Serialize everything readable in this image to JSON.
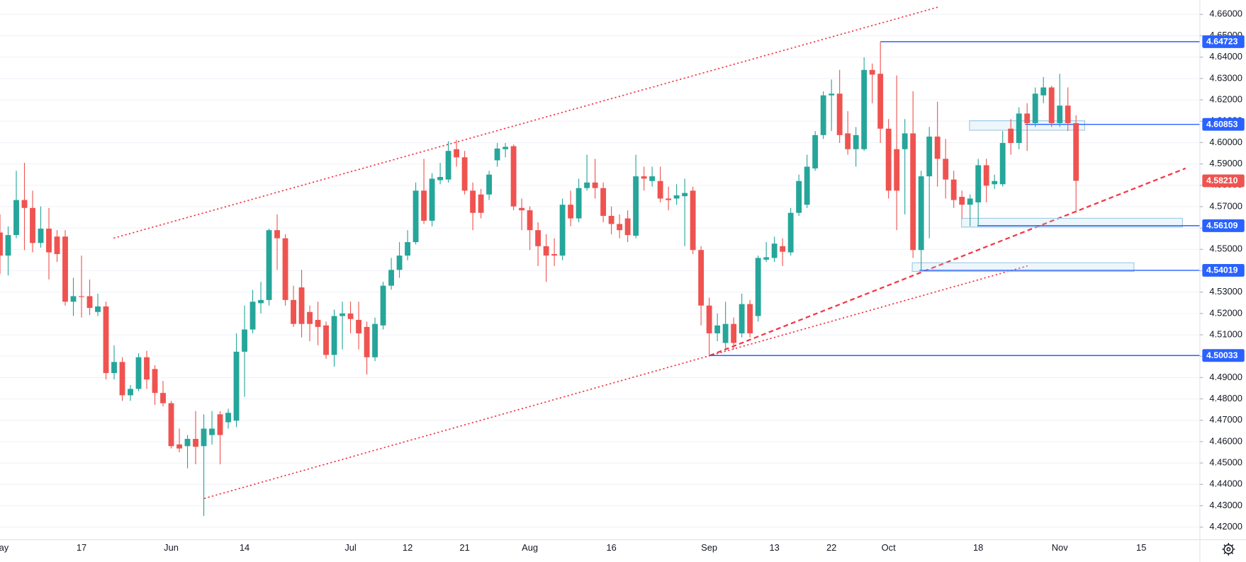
{
  "chart_data": {
    "type": "candlestick",
    "up_color": "#26a69a",
    "down_color": "#ef5350",
    "grid": true,
    "xlim": [
      0,
      147
    ],
    "ylim": [
      4.4141,
      4.6667
    ],
    "yticks": [
      {
        "value": 4.42,
        "label": "4.42000"
      },
      {
        "value": 4.43,
        "label": "4.43000"
      },
      {
        "value": 4.44,
        "label": "4.44000"
      },
      {
        "value": 4.45,
        "label": "4.45000"
      },
      {
        "value": 4.46,
        "label": "4.46000"
      },
      {
        "value": 4.47,
        "label": "4.47000"
      },
      {
        "value": 4.48,
        "label": "4.48000"
      },
      {
        "value": 4.49,
        "label": "4.49000"
      },
      {
        "value": 4.5,
        "label": "4.50000"
      },
      {
        "value": 4.51,
        "label": "4.51000"
      },
      {
        "value": 4.52,
        "label": "4.52000"
      },
      {
        "value": 4.53,
        "label": "4.53000"
      },
      {
        "value": 4.54,
        "label": "4.54000"
      },
      {
        "value": 4.55,
        "label": "4.55000"
      },
      {
        "value": 4.56,
        "label": "4.56000"
      },
      {
        "value": 4.57,
        "label": "4.57000"
      },
      {
        "value": 4.58,
        "label": "4.58000"
      },
      {
        "value": 4.59,
        "label": "4.59000"
      },
      {
        "value": 4.6,
        "label": "4.60000"
      },
      {
        "value": 4.61,
        "label": "4.61000"
      },
      {
        "value": 4.62,
        "label": "4.62000"
      },
      {
        "value": 4.63,
        "label": "4.63000"
      },
      {
        "value": 4.64,
        "label": "4.64000"
      },
      {
        "value": 4.65,
        "label": "4.65000"
      },
      {
        "value": 4.66,
        "label": "4.66000"
      }
    ],
    "categories": [
      "May",
      null,
      null,
      null,
      null,
      null,
      null,
      null,
      null,
      null,
      "17",
      null,
      null,
      null,
      null,
      null,
      null,
      null,
      null,
      null,
      null,
      "Jun",
      null,
      null,
      null,
      null,
      null,
      null,
      null,
      null,
      "14",
      null,
      null,
      null,
      null,
      null,
      null,
      null,
      null,
      null,
      null,
      null,
      null,
      "Jul",
      null,
      null,
      null,
      null,
      null,
      null,
      "12",
      null,
      null,
      null,
      null,
      null,
      null,
      "21",
      null,
      null,
      null,
      null,
      null,
      null,
      null,
      "Aug",
      null,
      null,
      null,
      null,
      null,
      null,
      null,
      null,
      null,
      "16",
      null,
      null,
      null,
      null,
      null,
      null,
      null,
      null,
      null,
      null,
      null,
      "Sep",
      null,
      null,
      null,
      null,
      null,
      null,
      null,
      "13",
      null,
      null,
      null,
      null,
      null,
      null,
      "22",
      null,
      null,
      null,
      null,
      null,
      null,
      "Oct",
      null,
      null,
      null,
      null,
      null,
      null,
      null,
      null,
      null,
      null,
      "18",
      null,
      null,
      null,
      null,
      null,
      null,
      null,
      null,
      null,
      "Nov",
      null,
      null,
      null,
      null,
      null,
      null,
      null,
      null,
      null,
      "15"
    ],
    "open": [
      4.5579,
      4.5471,
      4.5567,
      4.5731,
      4.5694,
      4.553,
      4.5597,
      4.556,
      4.556,
      4.5255,
      4.5281,
      4.5281,
      4.5207,
      4.5233,
      4.4921,
      4.4973,
      4.4817,
      4.4847,
      4.4995,
      4.494,
      4.4828,
      4.478,
      4.4587,
      4.4579,
      4.4613,
      4.4579,
      4.4631,
      4.4728,
      4.4691,
      4.4698,
      4.5021,
      4.5125,
      4.5248,
      4.5263,
      4.559,
      4.5552,
      4.5263,
      4.5322,
      4.5207,
      4.517,
      4.5144,
      4.5006,
      4.5188,
      4.52,
      4.517,
      4.5137,
      4.4995,
      4.5144,
      4.533,
      4.5404,
      4.5471,
      4.5534,
      4.5775,
      4.5634,
      4.5824,
      4.5827,
      4.5969,
      4.5931,
      4.5775,
      4.5757,
      4.5757,
      4.5917,
      4.5969,
      4.5983,
      4.5694,
      4.5683,
      4.559,
      4.5515,
      4.5478,
      4.5471,
      4.5709,
      4.5645,
      4.5787,
      4.5813,
      4.5787,
      4.5657,
      4.5619,
      4.5645,
      4.5564,
      4.5842,
      4.582,
      4.582,
      4.5738,
      4.5738,
      4.5749,
      4.5775,
      4.5497,
      4.5237,
      4.5107,
      4.5062,
      4.5151,
      4.5107,
      4.5244,
      4.5188,
      4.5452,
      4.546,
      4.5515,
      4.5486,
      4.5671,
      4.5709,
      4.5879,
      4.6035,
      4.6221,
      4.6229,
      4.6043,
      4.5969,
      4.5969,
      4.634,
      4.6322,
      4.6065,
      4.5969,
      4.5969,
      4.6043,
      4.5497,
      4.5842,
      4.6028,
      4.5924,
      4.5827,
      4.5746,
      4.5709,
      4.572,
      4.5894,
      4.5805,
      4.5805,
      4.6065,
      4.5998,
      4.6136,
      4.6091,
      4.6221,
      4.6258,
      4.6091,
      4.6173,
      4.6091,
      null,
      null,
      null,
      null,
      null,
      null,
      null,
      null
    ],
    "high": [
      4.5664,
      4.5608,
      4.5868,
      4.5905,
      4.5775,
      4.5701,
      4.5694,
      4.559,
      4.559,
      4.5367,
      4.5471,
      4.5359,
      4.5293,
      4.5255,
      4.5051,
      4.4995,
      4.4865,
      4.5014,
      4.5025,
      4.4958,
      4.4884,
      4.4791,
      4.4661,
      4.4631,
      4.4743,
      4.4728,
      4.4743,
      4.4743,
      4.4754,
      4.5107,
      4.5237,
      4.5311,
      4.5348,
      4.5597,
      4.5664,
      4.5571,
      4.533,
      4.5404,
      4.5237,
      4.5255,
      4.5162,
      4.5218,
      4.5255,
      4.5255,
      4.5255,
      4.5162,
      4.5181,
      4.5348,
      4.546,
      4.5534,
      4.559,
      4.5813,
      4.5924,
      4.5857,
      4.5905,
      4.6006,
      4.6013,
      4.5961,
      4.5813,
      4.5783,
      4.5868,
      4.5998,
      4.5998,
      4.5991,
      4.5738,
      4.5701,
      4.5627,
      4.5571,
      4.5552,
      4.5738,
      4.5775,
      4.5831,
      4.5943,
      4.5924,
      4.5813,
      4.5701,
      4.5664,
      4.5683,
      4.5943,
      4.5887,
      4.5887,
      4.5887,
      4.5794,
      4.5805,
      4.5831,
      4.5794,
      4.5515,
      4.5274,
      4.52,
      4.5255,
      4.5181,
      4.5293,
      4.5263,
      4.5471,
      4.5534,
      4.556,
      4.5552,
      4.5694,
      4.585,
      4.5943,
      4.6054,
      4.624,
      4.6295,
      4.634,
      4.6147,
      4.6073,
      4.6399,
      4.637,
      4.64723,
      4.611,
      4.6314,
      4.611,
      4.624,
      4.5868,
      4.6073,
      4.6191,
      4.6017,
      4.5868,
      4.5775,
      4.5757,
      4.5924,
      4.5924,
      4.585,
      4.6054,
      4.611,
      4.6165,
      4.6184,
      4.6258,
      4.6307,
      4.6266,
      4.6322,
      4.6258,
      4.6128,
      null,
      null,
      null,
      null,
      null,
      null,
      null,
      null
    ],
    "low": [
      4.5385,
      4.5378,
      4.5552,
      4.5497,
      4.5486,
      4.5508,
      4.5359,
      4.5441,
      4.5237,
      4.5188,
      4.5181,
      4.5192,
      4.5188,
      4.4891,
      4.4891,
      4.4791,
      4.4791,
      4.4836,
      4.4847,
      4.4772,
      4.4765,
      4.4568,
      4.455,
      4.4475,
      4.4494,
      4.4252,
      4.4587,
      4.4494,
      4.4661,
      4.4668,
      4.481,
      4.5107,
      4.52,
      4.5237,
      4.5404,
      4.5237,
      4.5137,
      4.5088,
      4.507,
      4.5051,
      4.4988,
      4.4951,
      4.5032,
      4.5107,
      4.5032,
      4.4914,
      4.4977,
      4.5125,
      4.5311,
      4.5367,
      4.5449,
      4.5523,
      4.5619,
      4.5608,
      4.5805,
      4.5813,
      4.5887,
      4.5757,
      4.559,
      4.5645,
      4.5731,
      4.5887,
      4.5931,
      4.5683,
      4.559,
      4.5497,
      4.5422,
      4.5348,
      4.5422,
      4.5449,
      4.5608,
      4.5627,
      4.5775,
      4.5738,
      4.5627,
      4.5571,
      4.5552,
      4.5534,
      4.5552,
      4.5775,
      4.5794,
      4.572,
      4.5683,
      4.5709,
      4.5515,
      4.5478,
      4.5144,
      4.50033,
      4.507,
      4.5032,
      4.5032,
      4.5088,
      4.5088,
      4.5162,
      4.5441,
      4.5441,
      4.5422,
      4.5471,
      4.5657,
      4.5694,
      4.5868,
      4.6017,
      4.6054,
      4.5998,
      4.5943,
      4.5887,
      4.5961,
      4.6184,
      4.5998,
      4.5738,
      4.559,
      4.5664,
      4.546,
      4.54019,
      4.5552,
      4.5794,
      4.5738,
      4.5694,
      4.5645,
      4.5608,
      4.56109,
      4.572,
      4.5783,
      4.5794,
      4.5943,
      4.5969,
      4.5961,
      4.6073,
      4.6184,
      4.6073,
      4.6073,
      4.6054,
      4.5671,
      null,
      null,
      null,
      null,
      null,
      null,
      null,
      null
    ],
    "close": [
      4.5471,
      4.5567,
      4.5731,
      4.5694,
      4.553,
      4.5597,
      4.5486,
      4.5478,
      4.5255,
      4.5281,
      4.5278,
      4.5226,
      4.5233,
      4.4921,
      4.4973,
      4.4817,
      4.4847,
      4.4995,
      4.4891,
      4.4828,
      4.478,
      4.4579,
      4.4568,
      4.4613,
      4.4576,
      4.4661,
      4.4661,
      4.4631,
      4.4735,
      4.5021,
      4.5125,
      4.5255,
      4.5263,
      4.559,
      4.5552,
      4.5263,
      4.5151,
      4.5151,
      4.5151,
      4.5137,
      4.5006,
      4.5188,
      4.52,
      4.5174,
      4.5107,
      4.4995,
      4.5151,
      4.533,
      4.5404,
      4.5471,
      4.5534,
      4.5775,
      4.5634,
      4.5831,
      4.5839,
      4.5961,
      4.5931,
      4.5775,
      4.5671,
      4.5671,
      4.585,
      4.5972,
      4.598,
      4.5701,
      4.5683,
      4.559,
      4.5515,
      4.5471,
      4.5471,
      4.5709,
      4.5645,
      4.5787,
      4.5813,
      4.5787,
      4.5657,
      4.5619,
      4.559,
      4.5567,
      4.5842,
      4.5831,
      4.5842,
      4.5738,
      4.5731,
      4.5753,
      4.5764,
      4.5497,
      4.5237,
      4.5107,
      4.5144,
      4.5151,
      4.5062,
      4.5244,
      4.5107,
      4.546,
      4.5463,
      4.5527,
      4.5489,
      4.5671,
      4.582,
      4.5887,
      4.6035,
      4.6221,
      4.6229,
      4.6035,
      4.5969,
      4.6035,
      4.634,
      4.6318,
      4.6065,
      4.5775,
      4.5775,
      4.6043,
      4.5497,
      4.5842,
      4.6028,
      4.5924,
      4.5827,
      4.5731,
      4.5709,
      4.5738,
      4.5894,
      4.5798,
      4.582,
      4.5998,
      4.5998,
      4.6136,
      4.6091,
      4.6229,
      4.6258,
      4.6091,
      4.6173,
      4.6091,
      4.5821,
      null,
      null,
      null,
      null,
      null,
      null,
      null,
      null
    ],
    "price_levels": [
      {
        "value": 4.64723,
        "color": "#2962ff"
      },
      {
        "value": 4.60853,
        "color": "#2962ff"
      },
      {
        "value": 4.5821,
        "label": "4.58210",
        "color": "#ef5350"
      },
      {
        "value": 4.56109,
        "color": "#2962ff"
      },
      {
        "value": 4.54019,
        "color": "#2962ff"
      },
      {
        "value": 4.50033,
        "color": "#2962ff"
      }
    ]
  }
}
